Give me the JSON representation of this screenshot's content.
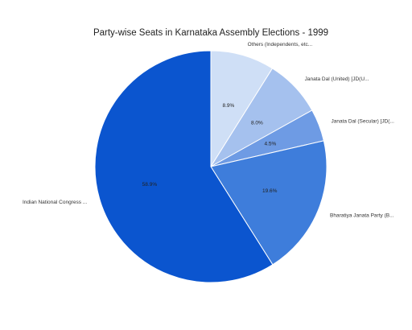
{
  "chart_data": {
    "type": "pie",
    "title": "Party-wise Seats in Karnataka Assembly Elections - 1999",
    "start_angle_deg": 0,
    "direction": "clockwise",
    "slices": [
      {
        "label": "Others (Independents, etc...",
        "value": 8.9,
        "value_label": "8.9%",
        "color": "#cfdff6"
      },
      {
        "label": "Janata Dal (United) [JD(U...",
        "value": 8.0,
        "value_label": "8.0%",
        "color": "#a5c1ee"
      },
      {
        "label": "Janata Dal (Secular) [JD(...",
        "value": 4.5,
        "value_label": "4.5%",
        "color": "#6e9be4"
      },
      {
        "label": "Bharatiya Janata Party (B...",
        "value": 19.6,
        "value_label": "19.6%",
        "color": "#3e7ddb"
      },
      {
        "label": "Indian National Congress ...",
        "value": 58.9,
        "value_label": "58.9%",
        "color": "#0b55cf"
      }
    ]
  }
}
